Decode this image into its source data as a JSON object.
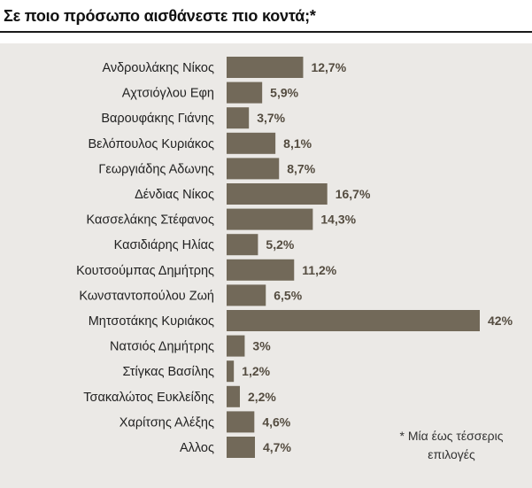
{
  "title": "Σε ποιο πρόσωπο αισθάνεστε πιο κοντά;*",
  "footnote": {
    "line1": "* Μία έως τέσσερις",
    "line2": "επιλογές"
  },
  "colors": {
    "bar": "#726959",
    "panel": "#ebe9e6",
    "value_text": "#544c40",
    "label_text": "#222222"
  },
  "chart_data": {
    "type": "bar",
    "orientation": "horizontal",
    "title": "Σε ποιο πρόσωπο αισθάνεστε πιο κοντά;*",
    "categories": [
      "Ανδρουλάκης Νίκος",
      "Αχτσιόγλου Εφη",
      "Βαρουφάκης Γιάνης",
      "Βελόπουλος Κυριάκος",
      "Γεωργιάδης Αδωνης",
      "Δένδιας Νίκος",
      "Κασσελάκης Στέφανος",
      "Κασιδιάρης Ηλίας",
      "Κουτσούμπας Δημήτρης",
      "Κωνσταντοπούλου Ζωή",
      "Μητσοτάκης Κυριάκος",
      "Νατσιός Δημήτρης",
      "Στίγκας Βασίλης",
      "Τσακαλώτος Ευκλείδης",
      "Χαρίτσης Αλέξης",
      "Αλλος"
    ],
    "values": [
      12.7,
      5.9,
      3.7,
      8.1,
      8.7,
      16.7,
      14.3,
      5.2,
      11.2,
      6.5,
      42,
      3,
      1.2,
      2.2,
      4.6,
      4.7
    ],
    "value_labels": [
      "12,7%",
      "5,9%",
      "3,7%",
      "8,1%",
      "8,7%",
      "16,7%",
      "14,3%",
      "5,2%",
      "11,2%",
      "6,5%",
      "42%",
      "3%",
      "1,2%",
      "2,2%",
      "4,6%",
      "4,7%"
    ],
    "xlim": [
      0,
      42
    ],
    "unit": "%",
    "grid": false,
    "legend": "none"
  }
}
